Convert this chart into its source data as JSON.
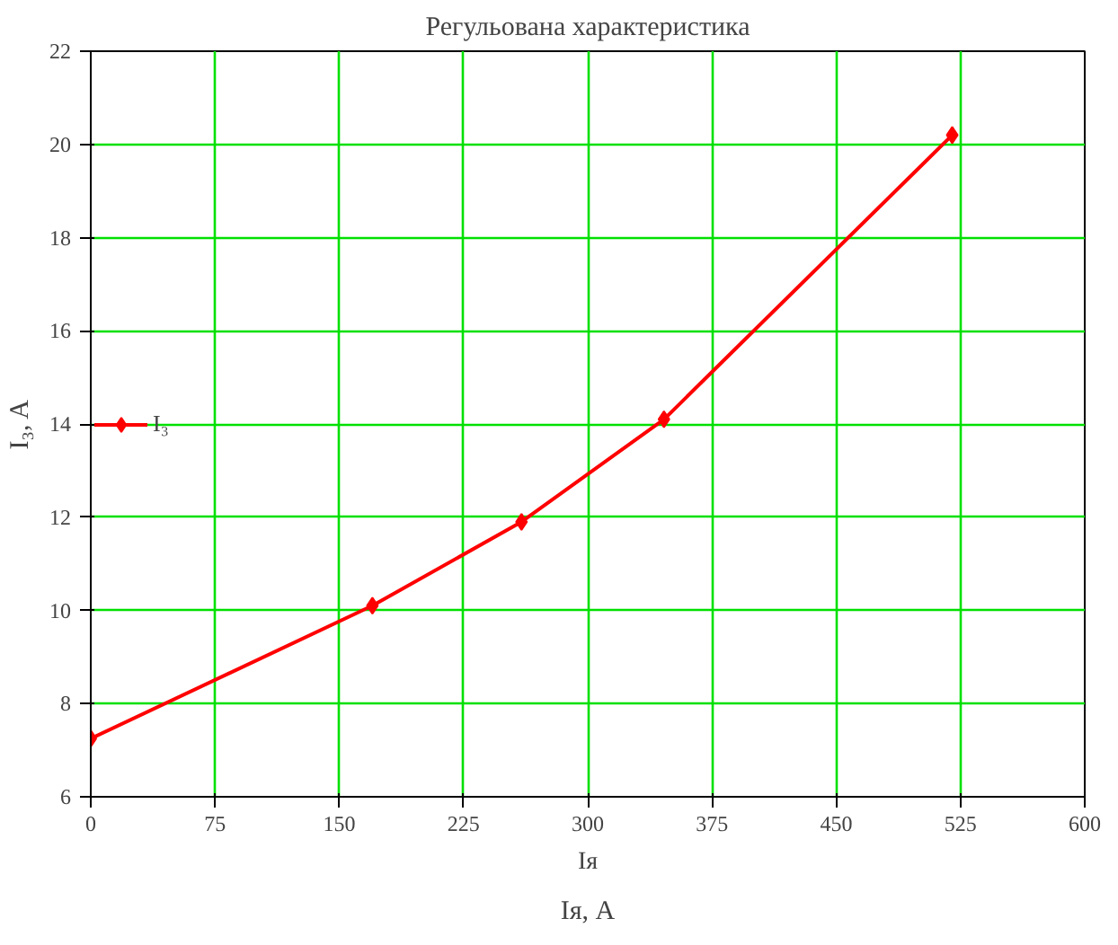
{
  "chart_data": {
    "type": "line",
    "title": "Регульована характеристика",
    "xlabel": "Iя, A",
    "ylabel": "I₃, A",
    "annotations": [
      "Iя"
    ],
    "x": [
      0,
      170,
      260,
      346,
      520
    ],
    "series": [
      {
        "name": "I₃",
        "color": "#ff0000",
        "values": [
          7.25,
          10.1,
          11.9,
          14.1,
          20.2
        ]
      }
    ],
    "xlim": [
      0,
      600
    ],
    "xticks": [
      0,
      75,
      150,
      225,
      300,
      375,
      450,
      525,
      600
    ],
    "ylim": [
      6,
      22
    ],
    "yticks": [
      6,
      8,
      10,
      12,
      14,
      16,
      18,
      20,
      22
    ],
    "grid": true,
    "legend": "left",
    "marker": "diamond",
    "line_style": "solid"
  }
}
